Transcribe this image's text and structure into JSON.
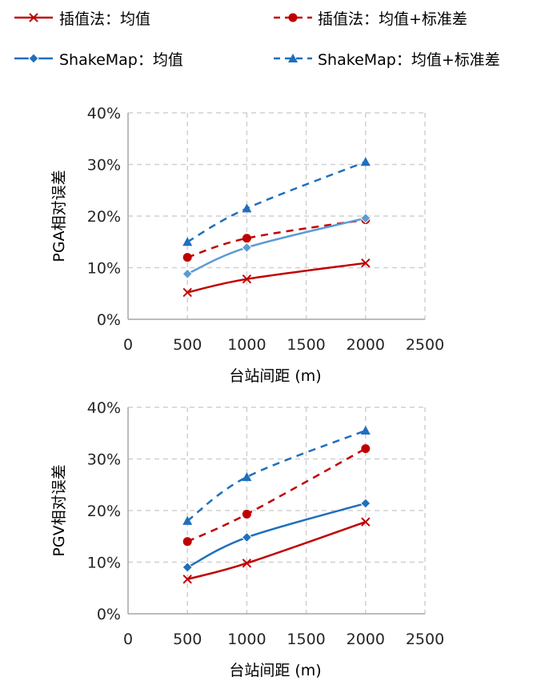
{
  "colors": {
    "red": "#c00000",
    "blue": "#1f6fbd",
    "light_blue": "#5b9bd5",
    "grid": "#d0d0d0",
    "axis": "#a6a6a6"
  },
  "legend": [
    {
      "label": "插值法：均值",
      "color": "#c00000",
      "dash": false,
      "marker": "x"
    },
    {
      "label": "插值法：均值+标准差",
      "color": "#c00000",
      "dash": true,
      "marker": "circle"
    },
    {
      "label": "ShakeMap：均值",
      "color": "#1f6fbd",
      "dash": false,
      "marker": "diamond"
    },
    {
      "label": "ShakeMap：均值+标准差",
      "color": "#1f6fbd",
      "dash": true,
      "marker": "triangle"
    }
  ],
  "chart_data": [
    {
      "type": "line",
      "ylabel": "PGA相对误差",
      "xlabel": "台站间距 (m)",
      "xlim": [
        0,
        2500
      ],
      "ylim": [
        0,
        40
      ],
      "xticks": [
        "0",
        "500",
        "1000",
        "1500",
        "2000",
        "2500"
      ],
      "yticks": [
        "0%",
        "10%",
        "20%",
        "30%",
        "40%"
      ],
      "grid": true,
      "x": [
        500,
        1000,
        2000
      ],
      "series": [
        {
          "name": "插值法：均值",
          "values": [
            5.2,
            7.8,
            10.9
          ],
          "color": "#c00000",
          "dash": false,
          "marker": "x"
        },
        {
          "name": "插值法：均值+标准差",
          "values": [
            12.0,
            15.7,
            19.3
          ],
          "color": "#c00000",
          "dash": true,
          "marker": "circle"
        },
        {
          "name": "ShakeMap：均值",
          "values": [
            8.8,
            13.9,
            19.6
          ],
          "color": "#5b9bd5",
          "dash": false,
          "marker": "diamond"
        },
        {
          "name": "ShakeMap：均值+标准差",
          "values": [
            15.0,
            21.5,
            30.5
          ],
          "color": "#1f6fbd",
          "dash": true,
          "marker": "triangle"
        }
      ]
    },
    {
      "type": "line",
      "ylabel": "PGV相对误差",
      "xlabel": "台站间距 (m)",
      "xlim": [
        0,
        2500
      ],
      "ylim": [
        0,
        40
      ],
      "xticks": [
        "0",
        "500",
        "1000",
        "1500",
        "2000",
        "2500"
      ],
      "yticks": [
        "0%",
        "10%",
        "20%",
        "30%",
        "40%"
      ],
      "grid": true,
      "x": [
        500,
        1000,
        2000
      ],
      "series": [
        {
          "name": "插值法：均值",
          "values": [
            6.7,
            9.8,
            17.8
          ],
          "color": "#c00000",
          "dash": false,
          "marker": "x"
        },
        {
          "name": "插值法：均值+标准差",
          "values": [
            14.0,
            19.3,
            32.0
          ],
          "color": "#c00000",
          "dash": true,
          "marker": "circle"
        },
        {
          "name": "ShakeMap：均值",
          "values": [
            9.0,
            14.8,
            21.4
          ],
          "color": "#1f6fbd",
          "dash": false,
          "marker": "diamond"
        },
        {
          "name": "ShakeMap：均值+标准差",
          "values": [
            18.0,
            26.5,
            35.5
          ],
          "color": "#1f6fbd",
          "dash": true,
          "marker": "triangle"
        }
      ]
    }
  ]
}
